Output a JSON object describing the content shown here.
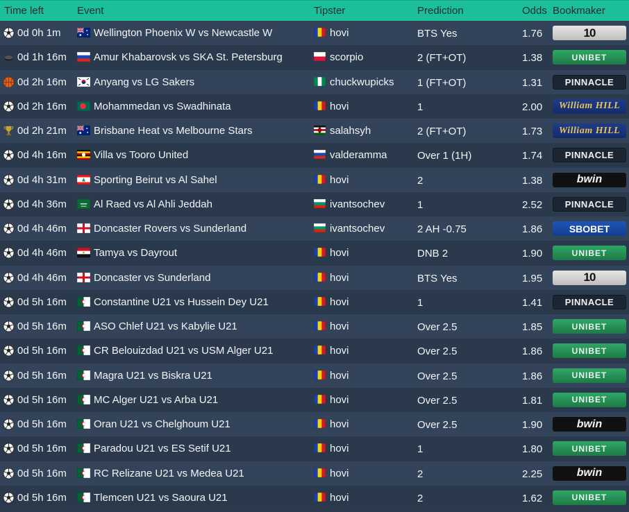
{
  "header": {
    "time_left": "Time left",
    "event": "Event",
    "tipster": "Tipster",
    "prediction": "Prediction",
    "odds": "Odds",
    "bookmaker": "Bookmaker"
  },
  "rows": [
    {
      "sport": "soccer-ball-icon",
      "time": "0d 0h 1m",
      "event_flag": "australia-flag-icon",
      "event": "Wellington Phoenix W vs Newcastle W",
      "tipster_flag": "romania-flag-icon",
      "tipster": "hovi",
      "prediction": "BTS Yes",
      "odds": "1.76",
      "bookmaker": "10bet",
      "bookmaker_label": "10"
    },
    {
      "sport": "hockey-puck-icon",
      "time": "0d 1h 16m",
      "event_flag": "russia-flag-icon",
      "event": "Amur Khabarovsk vs SKA St. Petersburg",
      "tipster_flag": "poland-flag-icon",
      "tipster": "scorpio",
      "prediction": "2 (FT+OT)",
      "odds": "1.38",
      "bookmaker": "unibet",
      "bookmaker_label": "UNIBET"
    },
    {
      "sport": "basketball-icon",
      "time": "0d 2h 16m",
      "event_flag": "south-korea-flag-icon",
      "event": "Anyang vs LG Sakers",
      "tipster_flag": "nigeria-flag-icon",
      "tipster": "chuckwupicks",
      "prediction": "1 (FT+OT)",
      "odds": "1.31",
      "bookmaker": "pinnacle",
      "bookmaker_label": "PINNACLE"
    },
    {
      "sport": "soccer-ball-icon",
      "time": "0d 2h 16m",
      "event_flag": "bangladesh-flag-icon",
      "event": "Mohammedan vs Swadhinata",
      "tipster_flag": "romania-flag-icon",
      "tipster": "hovi",
      "prediction": "1",
      "odds": "2.00",
      "bookmaker": "williamhill",
      "bookmaker_label": "William HILL"
    },
    {
      "sport": "cricket-trophy-icon",
      "time": "0d 2h 21m",
      "event_flag": "australia-flag-icon",
      "event": "Brisbane Heat vs Melbourne Stars",
      "tipster_flag": "kenya-flag-icon",
      "tipster": "salahsyh",
      "prediction": "2 (FT+OT)",
      "odds": "1.73",
      "bookmaker": "williamhill",
      "bookmaker_label": "William HILL"
    },
    {
      "sport": "soccer-ball-icon",
      "time": "0d 4h 16m",
      "event_flag": "uganda-flag-icon",
      "event": "Villa vs Tooro United",
      "tipster_flag": "russia-flag-icon",
      "tipster": "valderamma",
      "prediction": "Over 1 (1H)",
      "odds": "1.74",
      "bookmaker": "pinnacle",
      "bookmaker_label": "PINNACLE"
    },
    {
      "sport": "soccer-ball-icon",
      "time": "0d 4h 31m",
      "event_flag": "lebanon-flag-icon",
      "event": "Sporting Beirut vs Al Sahel",
      "tipster_flag": "romania-flag-icon",
      "tipster": "hovi",
      "prediction": "2",
      "odds": "1.38",
      "bookmaker": "bwin",
      "bookmaker_label": "bwin"
    },
    {
      "sport": "soccer-ball-icon",
      "time": "0d 4h 36m",
      "event_flag": "saudi-arabia-flag-icon",
      "event": "Al Raed vs Al Ahli Jeddah",
      "tipster_flag": "bulgaria-flag-icon",
      "tipster": "ivantsochev",
      "prediction": "1",
      "odds": "2.52",
      "bookmaker": "pinnacle",
      "bookmaker_label": "PINNACLE"
    },
    {
      "sport": "soccer-ball-icon",
      "time": "0d 4h 46m",
      "event_flag": "england-flag-icon",
      "event": "Doncaster Rovers vs Sunderland",
      "tipster_flag": "bulgaria-flag-icon",
      "tipster": "ivantsochev",
      "prediction": "2 AH -0.75",
      "odds": "1.86",
      "bookmaker": "sbobet",
      "bookmaker_label": "SBOBET"
    },
    {
      "sport": "soccer-ball-icon",
      "time": "0d 4h 46m",
      "event_flag": "egypt-flag-icon",
      "event": "Tamya vs Dayrout",
      "tipster_flag": "romania-flag-icon",
      "tipster": "hovi",
      "prediction": "DNB 2",
      "odds": "1.90",
      "bookmaker": "unibet",
      "bookmaker_label": "UNIBET"
    },
    {
      "sport": "soccer-ball-icon",
      "time": "0d 4h 46m",
      "event_flag": "england-flag-icon",
      "event": "Doncaster vs Sunderland",
      "tipster_flag": "romania-flag-icon",
      "tipster": "hovi",
      "prediction": "BTS Yes",
      "odds": "1.95",
      "bookmaker": "10bet",
      "bookmaker_label": "10"
    },
    {
      "sport": "soccer-ball-icon",
      "time": "0d 5h 16m",
      "event_flag": "algeria-flag-icon",
      "event": "Constantine U21 vs Hussein Dey U21",
      "tipster_flag": "romania-flag-icon",
      "tipster": "hovi",
      "prediction": "1",
      "odds": "1.41",
      "bookmaker": "pinnacle",
      "bookmaker_label": "PINNACLE"
    },
    {
      "sport": "soccer-ball-icon",
      "time": "0d 5h 16m",
      "event_flag": "algeria-flag-icon",
      "event": "ASO Chlef U21 vs Kabylie U21",
      "tipster_flag": "romania-flag-icon",
      "tipster": "hovi",
      "prediction": "Over 2.5",
      "odds": "1.85",
      "bookmaker": "unibet",
      "bookmaker_label": "UNIBET"
    },
    {
      "sport": "soccer-ball-icon",
      "time": "0d 5h 16m",
      "event_flag": "algeria-flag-icon",
      "event": "CR Belouizdad U21 vs USM Alger U21",
      "tipster_flag": "romania-flag-icon",
      "tipster": "hovi",
      "prediction": "Over 2.5",
      "odds": "1.86",
      "bookmaker": "unibet",
      "bookmaker_label": "UNIBET"
    },
    {
      "sport": "soccer-ball-icon",
      "time": "0d 5h 16m",
      "event_flag": "algeria-flag-icon",
      "event": "Magra U21 vs Biskra U21",
      "tipster_flag": "romania-flag-icon",
      "tipster": "hovi",
      "prediction": "Over 2.5",
      "odds": "1.86",
      "bookmaker": "unibet",
      "bookmaker_label": "UNIBET"
    },
    {
      "sport": "soccer-ball-icon",
      "time": "0d 5h 16m",
      "event_flag": "algeria-flag-icon",
      "event": "MC Alger U21 vs Arba U21",
      "tipster_flag": "romania-flag-icon",
      "tipster": "hovi",
      "prediction": "Over 2.5",
      "odds": "1.81",
      "bookmaker": "unibet",
      "bookmaker_label": "UNIBET"
    },
    {
      "sport": "soccer-ball-icon",
      "time": "0d 5h 16m",
      "event_flag": "algeria-flag-icon",
      "event": "Oran U21 vs Chelghoum U21",
      "tipster_flag": "romania-flag-icon",
      "tipster": "hovi",
      "prediction": "Over 2.5",
      "odds": "1.90",
      "bookmaker": "bwin",
      "bookmaker_label": "bwin"
    },
    {
      "sport": "soccer-ball-icon",
      "time": "0d 5h 16m",
      "event_flag": "algeria-flag-icon",
      "event": "Paradou U21 vs ES Setif U21",
      "tipster_flag": "romania-flag-icon",
      "tipster": "hovi",
      "prediction": "1",
      "odds": "1.80",
      "bookmaker": "unibet",
      "bookmaker_label": "UNIBET"
    },
    {
      "sport": "soccer-ball-icon",
      "time": "0d 5h 16m",
      "event_flag": "algeria-flag-icon",
      "event": "RC Relizane U21 vs Medea U21",
      "tipster_flag": "romania-flag-icon",
      "tipster": "hovi",
      "prediction": "2",
      "odds": "2.25",
      "bookmaker": "bwin",
      "bookmaker_label": "bwin"
    },
    {
      "sport": "soccer-ball-icon",
      "time": "0d 5h 16m",
      "event_flag": "algeria-flag-icon",
      "event": "Tlemcen U21 vs Saoura U21",
      "tipster_flag": "romania-flag-icon",
      "tipster": "hovi",
      "prediction": "2",
      "odds": "1.62",
      "bookmaker": "unibet",
      "bookmaker_label": "UNIBET"
    }
  ]
}
